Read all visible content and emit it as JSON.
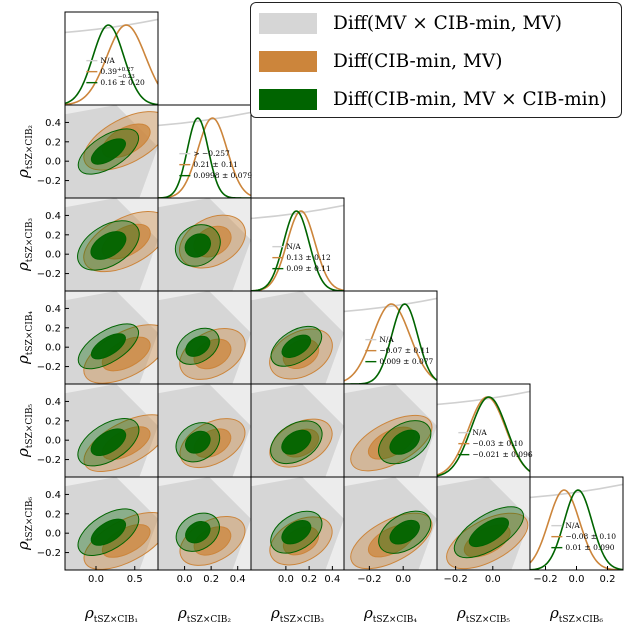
{
  "colors": {
    "gray": "#d6d6d6",
    "orange": "#cc853b",
    "green": "#006400"
  },
  "legend": [
    {
      "label": "Diff(MV × CIB-min, MV)",
      "color": "#d6d6d6"
    },
    {
      "label": "Diff(CIB-min, MV)",
      "color": "#cc853b"
    },
    {
      "label": "Diff(CIB-min, MV × CIB-min)",
      "color": "#006400"
    }
  ],
  "chart_data": {
    "type": "triangle",
    "title": "",
    "params": [
      {
        "label": "ρ",
        "sub": "tSZ×CIB₁"
      },
      {
        "label": "ρ",
        "sub": "tSZ×CIB₂"
      },
      {
        "label": "ρ",
        "sub": "tSZ×CIB₃"
      },
      {
        "label": "ρ",
        "sub": "tSZ×CIB₄"
      },
      {
        "label": "ρ",
        "sub": "tSZ×CIB₅"
      },
      {
        "label": "ρ",
        "sub": "tSZ×CIB₆"
      }
    ],
    "ranges": [
      [
        -0.4,
        0.8
      ],
      [
        -0.2,
        0.5
      ],
      [
        -0.3,
        0.5
      ],
      [
        -0.35,
        0.2
      ],
      [
        -0.3,
        0.2
      ],
      [
        -0.3,
        0.3
      ]
    ],
    "y_range": [
      -0.38,
      0.58
    ],
    "x_ticks": [
      {
        "values": [
          0.0,
          0.5
        ],
        "labels": [
          "0.0",
          "0.5"
        ]
      },
      {
        "values": [
          0.0,
          0.2,
          0.4
        ],
        "labels": [
          "0.0",
          "0.2",
          "0.4"
        ]
      },
      {
        "values": [
          0.0,
          0.2,
          0.4
        ],
        "labels": [
          "0.0",
          "0.2",
          "0.4"
        ]
      },
      {
        "values": [
          -0.2,
          0.0
        ],
        "labels": [
          "−0.2",
          "0.0"
        ]
      },
      {
        "values": [
          -0.2,
          0.0
        ],
        "labels": [
          "−0.2",
          "0.0"
        ]
      },
      {
        "values": [
          -0.2,
          0.0,
          0.2
        ],
        "labels": [
          "−0.2",
          "0.0",
          "0.2"
        ]
      }
    ],
    "y_ticks": [
      {
        "values": [
          -0.2,
          0.0,
          0.2,
          0.4
        ],
        "labels": [
          "−0.2",
          "0.0",
          "0.2",
          "0.4"
        ]
      }
    ],
    "means": {
      "orange": [
        0.39,
        0.21,
        0.13,
        -0.07,
        -0.03,
        -0.08
      ],
      "green": [
        0.16,
        0.0998,
        0.09,
        0.009,
        -0.021,
        0.01
      ]
    },
    "sigmas": {
      "orange": [
        0.25,
        0.11,
        0.12,
        0.11,
        0.1,
        0.1
      ],
      "green": [
        0.2,
        0.079,
        0.11,
        0.077,
        0.096,
        0.09
      ]
    },
    "annotations": [
      [
        "N/A",
        "0.39",
        "0.16 ± 0.20"
      ],
      [
        "> −0.257",
        "0.21 ± 0.11",
        "0.0998 ± 0.079"
      ],
      [
        "N/A",
        "0.13 ± 0.12",
        "0.09 ± 0.11"
      ],
      [
        "N/A",
        "−0.07 ± 0.11",
        "0.009 ± 0.077"
      ],
      [
        "N/A",
        "−0.03 ± 0.10",
        "−0.021 ± 0.096"
      ],
      [
        "N/A",
        "−0.08 ± 0.10",
        "0.01 ± 0.090"
      ]
    ],
    "annotation_sup": "+0.27",
    "annotation_sub": "−0.23"
  }
}
